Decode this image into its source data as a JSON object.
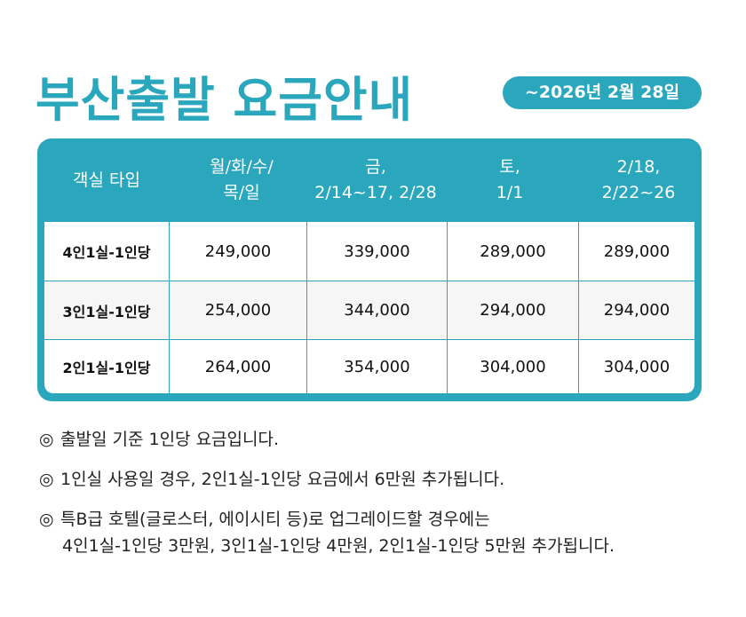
{
  "title": "부산출발 요금안내",
  "period": "~2026년 2월 28일",
  "table": {
    "headers": [
      "객실 타입",
      "월/화/수/\n목/일",
      "금,\n2/14~17, 2/28",
      "토,\n1/1",
      "2/18,\n2/22~26"
    ],
    "rows": [
      {
        "label": "4인1실-1인당",
        "prices": [
          "249,000",
          "339,000",
          "289,000",
          "289,000"
        ]
      },
      {
        "label": "3인1실-1인당",
        "prices": [
          "254,000",
          "344,000",
          "294,000",
          "294,000"
        ]
      },
      {
        "label": "2인1실-1인당",
        "prices": [
          "264,000",
          "354,000",
          "304,000",
          "304,000"
        ]
      }
    ]
  },
  "notes": {
    "bullet": "◎",
    "note1": "출발일 기준 1인당 요금입니다.",
    "note2": "1인실 사용일 경우, 2인1실-1인당 요금에서 6만원 추가됩니다.",
    "note3_line1": "특B급 호텔(글로스터, 에이시티 등)로 업그레이드할 경우에는",
    "note3_line2": "4인1실-1인당 3만원, 3인1실-1인당 4만원, 2인1실-1인당 5만원 추가됩니다."
  },
  "colors": {
    "accent": "#2aa7bd",
    "alt_row": "#f6f6f6"
  }
}
